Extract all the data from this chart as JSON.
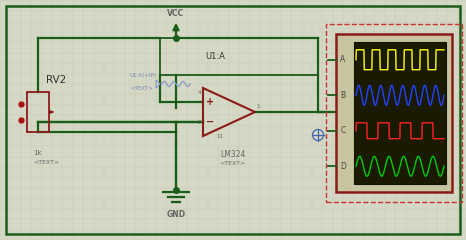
{
  "bg_color": "#d4d8c4",
  "grid_color": "#c4c8b4",
  "border_color": "#1a5c1a",
  "wire_color": "#1a5c1a",
  "component_color": "#8b1a1a",
  "text_color": "#666666",
  "blue_text_color": "#7788bb",
  "figsize": [
    4.66,
    2.4
  ],
  "dpi": 100,
  "vcc_label": "VCC",
  "gnd_label": "GND",
  "rv2_label": "RV2",
  "u1a_label": "U1:A",
  "lm324_label": "LM324",
  "lm324_sub": "<TEXT>",
  "rv2_1k": "1k",
  "rv2_text": "<TEXT>",
  "pin_label1": "U1:A(+IP)",
  "pin_label2": "<TEXT>",
  "scope_labels": [
    "A",
    "B",
    "C",
    "D"
  ],
  "scope_bg": "#1a1a00",
  "scope_border": "#8b1a1a",
  "scope_outer_bg": "#c8c4a0",
  "wave_colors": [
    "#ffff00",
    "#2244ff",
    "#ff2222",
    "#00cc00"
  ],
  "dashed_border_color": "#cc3333",
  "junction_color": "#1a5c1a"
}
